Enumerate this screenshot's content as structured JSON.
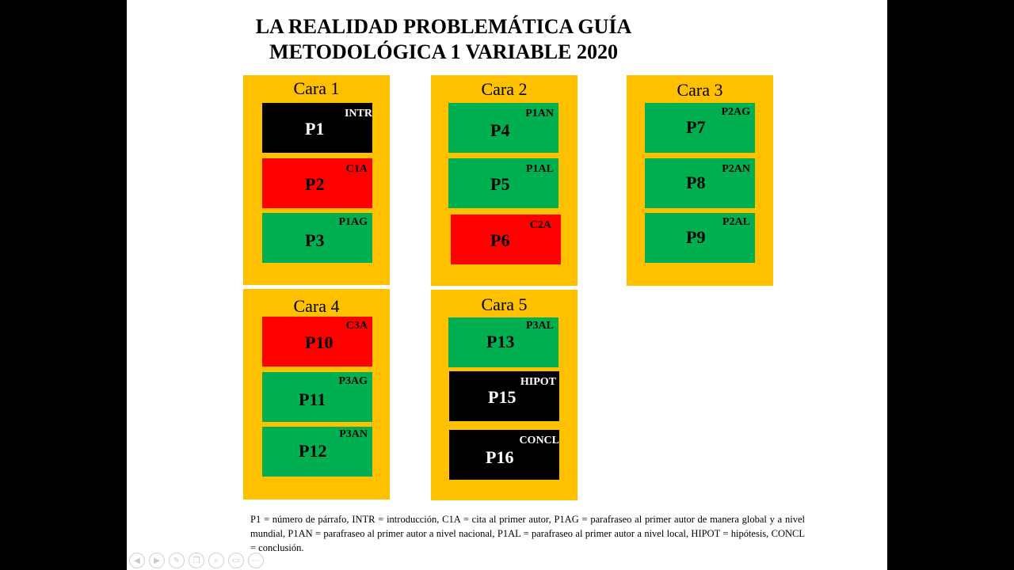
{
  "title": {
    "line1": "LA REALIDAD PROBLEMÁTICA GUÍA",
    "line2": "METODOLÓGICA 1 VARIABLE 2020"
  },
  "caras": [
    {
      "label": "Cara 1",
      "items": [
        {
          "p": "P1",
          "code": "INTR",
          "color": "black"
        },
        {
          "p": "P2",
          "code": "C1A",
          "color": "red"
        },
        {
          "p": "P3",
          "code": "P1AG",
          "color": "green"
        }
      ]
    },
    {
      "label": "Cara 2",
      "items": [
        {
          "p": "P4",
          "code": "P1AN",
          "color": "green"
        },
        {
          "p": "P5",
          "code": "P1AL",
          "color": "green"
        },
        {
          "p": "P6",
          "code": "C2A",
          "color": "red"
        }
      ]
    },
    {
      "label": "Cara 3",
      "items": [
        {
          "p": "P7",
          "code": "P2AG",
          "color": "green"
        },
        {
          "p": "P8",
          "code": "P2AN",
          "color": "green"
        },
        {
          "p": "P9",
          "code": "P2AL",
          "color": "green"
        }
      ]
    },
    {
      "label": "Cara 4",
      "items": [
        {
          "p": "P10",
          "code": "C3A",
          "color": "red"
        },
        {
          "p": "P11",
          "code": "P3AG",
          "color": "green"
        },
        {
          "p": "P12",
          "code": "P3AN",
          "color": "green"
        }
      ]
    },
    {
      "label": "Cara 5",
      "items": [
        {
          "p": "P13",
          "code": "P3AL",
          "color": "green"
        },
        {
          "p": "P15",
          "code": "HIPOT",
          "color": "black"
        },
        {
          "p": "P16",
          "code": "CONCL",
          "color": "black"
        }
      ]
    }
  ],
  "legend": "P1 = número de párrafo, INTR = introducción, C1A = cita al primer autor, P1AG = parafraseo al primer autor de manera global y a nivel mundial, P1AN = parafraseo al primer autor a nivel nacional, P1AL = parafraseo al primer autor a nivel local, HIPOT = hipótesis, CONCL = conclusión.",
  "colors": {
    "yellow": "#FFC000",
    "green": "#00B050",
    "red": "#FF0000",
    "black": "#000000"
  },
  "toolbar": {
    "icons": [
      "prev-icon",
      "next-icon",
      "pen-icon",
      "copy-icon",
      "zoom-icon",
      "subtitles-icon",
      "more-icon"
    ]
  }
}
